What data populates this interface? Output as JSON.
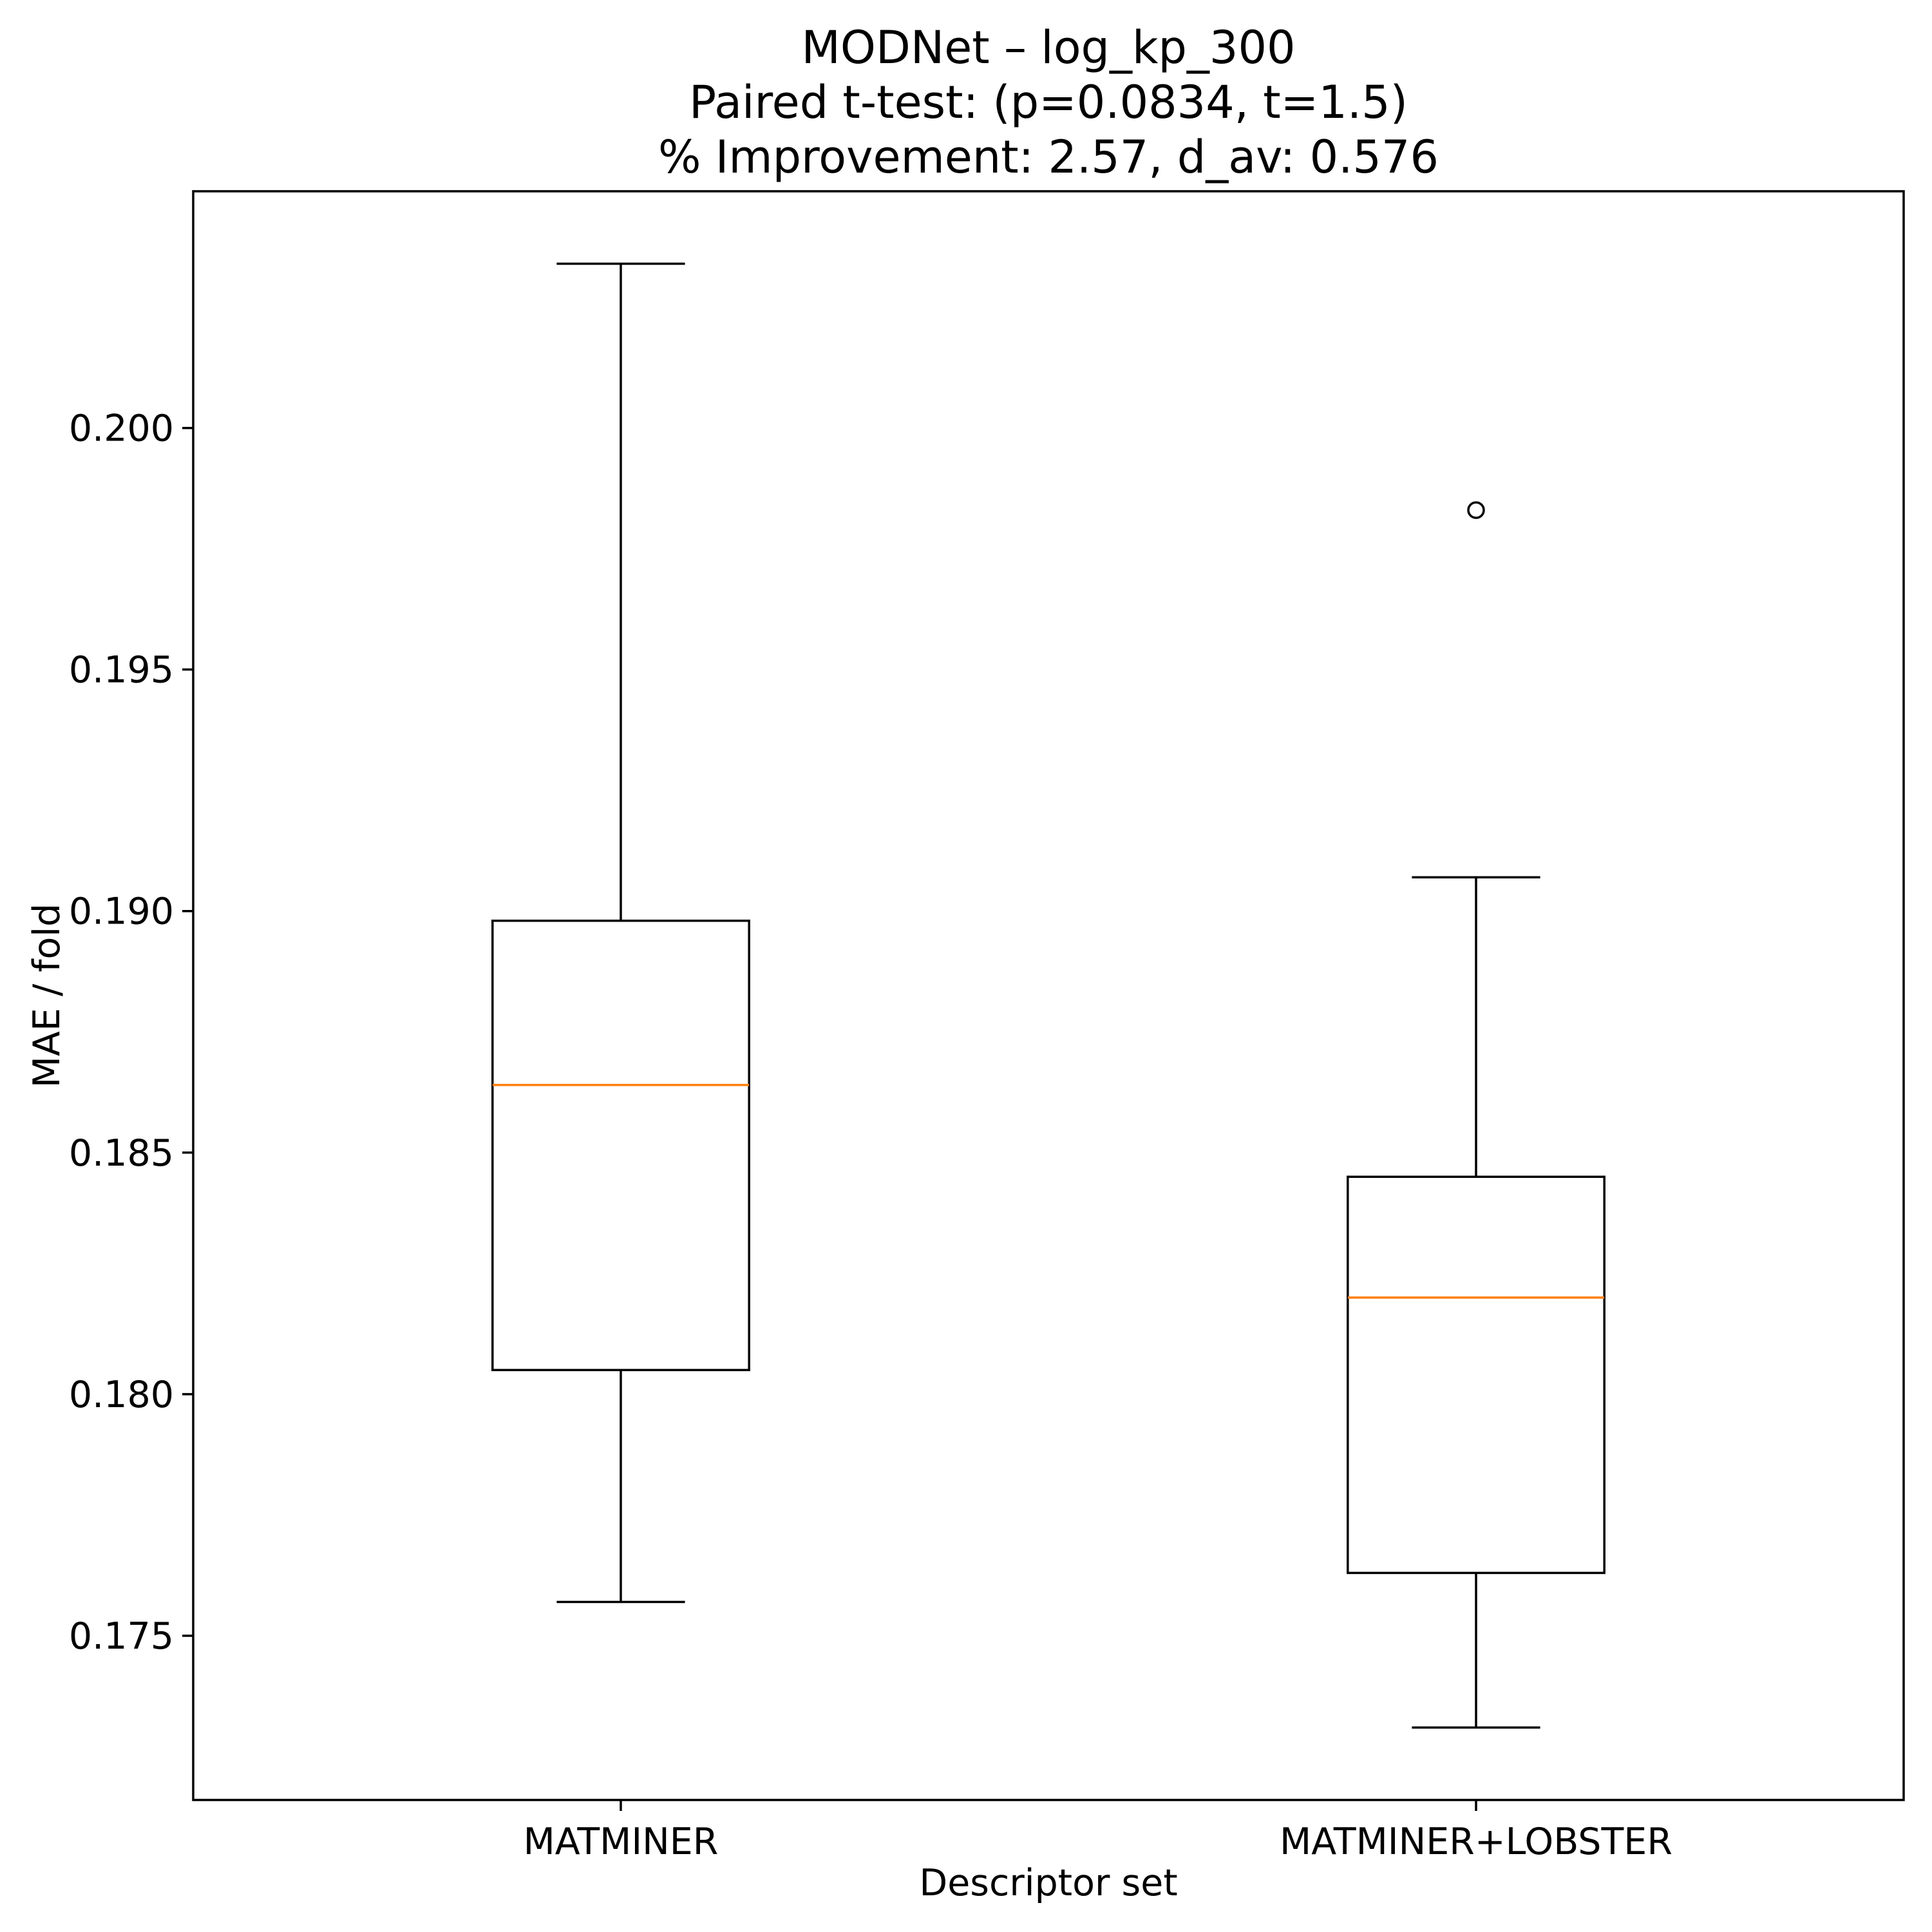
{
  "chart_data": {
    "type": "box",
    "title_lines": [
      "MODNet – log_kp_300",
      "Paired t-test: (p=0.0834, t=1.5)",
      "% Improvement: 2.57, d_av: 0.576"
    ],
    "xlabel": "Descriptor set",
    "ylabel": "MAE / fold",
    "categories": [
      "MATMINER",
      "MATMINER+LOBSTER"
    ],
    "ylim": [
      0.1716,
      0.2049
    ],
    "yticks": [
      0.175,
      0.18,
      0.185,
      0.19,
      0.195,
      0.2
    ],
    "ytick_labels": [
      "0.175",
      "0.180",
      "0.185",
      "0.190",
      "0.195",
      "0.200"
    ],
    "grid": false,
    "legend": null,
    "series": [
      {
        "name": "MATMINER",
        "whisker_low": 0.1757,
        "q1": 0.1805,
        "median": 0.1864,
        "q3": 0.1898,
        "whisker_high": 0.2034,
        "outliers": []
      },
      {
        "name": "MATMINER+LOBSTER",
        "whisker_low": 0.1731,
        "q1": 0.1763,
        "median": 0.182,
        "q3": 0.1845,
        "whisker_high": 0.1907,
        "outliers": [
          0.1983
        ]
      }
    ],
    "colors": {
      "box": "#000000",
      "median": "#ff7f0e",
      "outlier": "#000000"
    }
  }
}
